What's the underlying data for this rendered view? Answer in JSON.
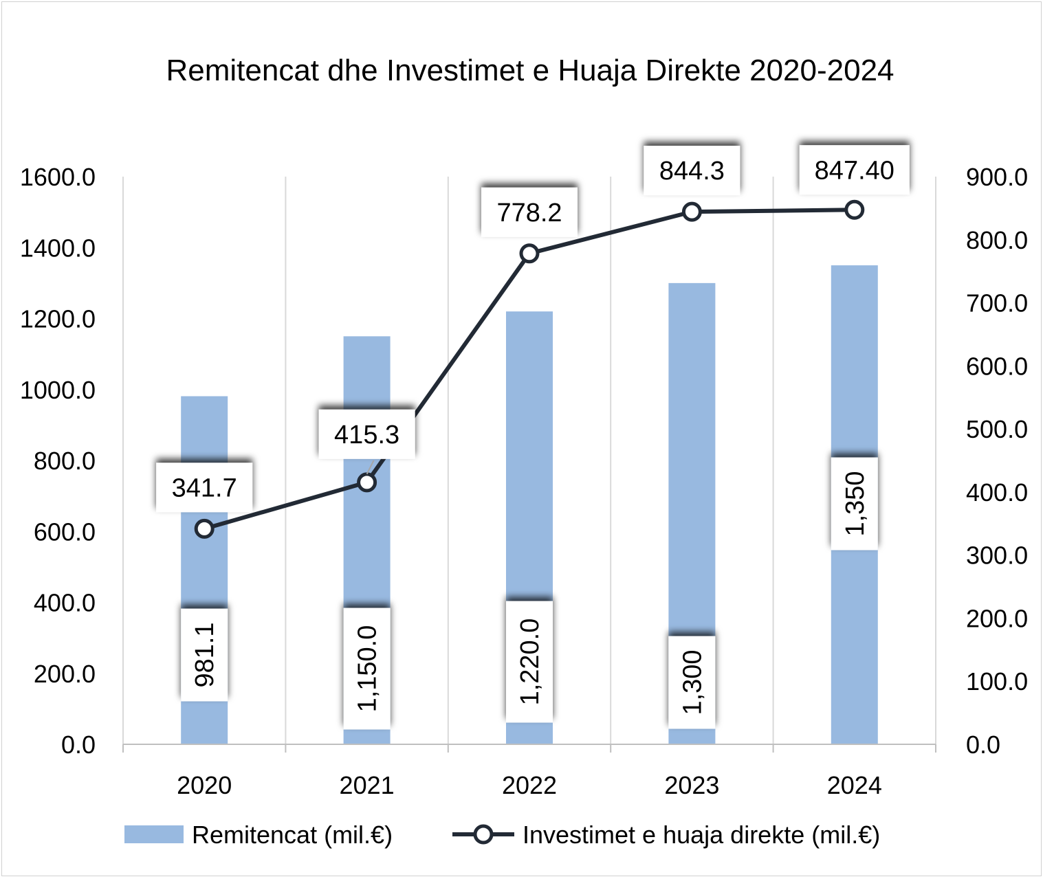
{
  "chart_data": {
    "type": "bar",
    "title": "Remitencat dhe Investimet e Huaja Direkte 2020-2024",
    "categories": [
      "2020",
      "2021",
      "2022",
      "2023",
      "2024"
    ],
    "series": [
      {
        "name": "Remitencat (mil.€)",
        "type": "bar",
        "axis": "left",
        "values": [
          981.1,
          1150.0,
          1220.0,
          1300,
          1350
        ],
        "labels": [
          "981.1",
          "1,150.0",
          "1,220.0",
          "1,300",
          "1,350"
        ],
        "color": "#98b9e0"
      },
      {
        "name": "Investimet e huaja direkte (mil.€)",
        "type": "line",
        "axis": "right",
        "values": [
          341.7,
          415.3,
          778.2,
          844.3,
          847.4
        ],
        "labels": [
          "341.7",
          "415.3",
          "778.2",
          "844.3",
          "847.40"
        ],
        "color": "#222a35"
      }
    ],
    "y_left": {
      "range": [
        0,
        1600
      ],
      "ticks": [
        "0.0",
        "200.0",
        "400.0",
        "600.0",
        "800.0",
        "1000.0",
        "1200.0",
        "1400.0",
        "1600.0"
      ]
    },
    "y_right": {
      "range": [
        0,
        900
      ],
      "ticks": [
        "0.0",
        "100.0",
        "200.0",
        "300.0",
        "400.0",
        "500.0",
        "600.0",
        "700.0",
        "800.0",
        "900.0"
      ]
    },
    "grid": "vertical",
    "legend": "bottom"
  }
}
